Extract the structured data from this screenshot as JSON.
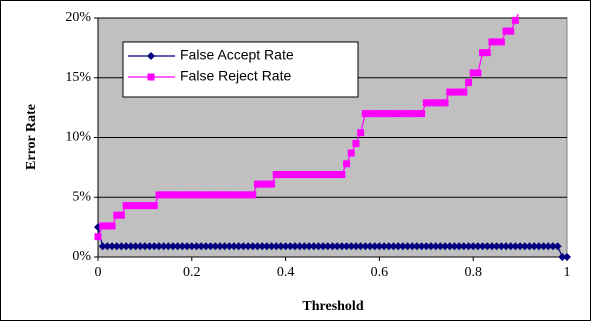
{
  "chart_data": {
    "type": "line",
    "xlabel": "Threshold",
    "ylabel": "Error Rate",
    "xlim": [
      0,
      1
    ],
    "ylim": [
      0,
      20
    ],
    "xticks": [
      0,
      0.2,
      0.4,
      0.6,
      0.8,
      1
    ],
    "yticks": [
      {
        "value": 0,
        "label": "0%"
      },
      {
        "value": 5,
        "label": "5%"
      },
      {
        "value": 10,
        "label": "10%"
      },
      {
        "value": 15,
        "label": "15%"
      },
      {
        "value": 20,
        "label": "20%"
      }
    ],
    "grid": true,
    "legend": "upper left",
    "series": [
      {
        "name": "False Accept Rate",
        "color": "#000080",
        "marker": "diamond",
        "x": [
          0,
          0.01,
          0.02,
          0.03,
          0.04,
          0.05,
          0.06,
          0.07,
          0.08,
          0.09,
          0.1,
          0.11,
          0.12,
          0.13,
          0.14,
          0.15,
          0.16,
          0.17,
          0.18,
          0.19,
          0.2,
          0.21,
          0.22,
          0.23,
          0.24,
          0.25,
          0.26,
          0.27,
          0.28,
          0.29,
          0.3,
          0.31,
          0.32,
          0.33,
          0.34,
          0.35,
          0.36,
          0.37,
          0.38,
          0.39,
          0.4,
          0.41,
          0.42,
          0.43,
          0.44,
          0.45,
          0.46,
          0.47,
          0.48,
          0.49,
          0.5,
          0.51,
          0.52,
          0.53,
          0.54,
          0.55,
          0.56,
          0.57,
          0.58,
          0.59,
          0.6,
          0.61,
          0.62,
          0.63,
          0.64,
          0.65,
          0.66,
          0.67,
          0.68,
          0.69,
          0.7,
          0.71,
          0.72,
          0.73,
          0.74,
          0.75,
          0.76,
          0.77,
          0.78,
          0.79,
          0.8,
          0.81,
          0.82,
          0.83,
          0.84,
          0.85,
          0.86,
          0.87,
          0.88,
          0.89,
          0.9,
          0.91,
          0.92,
          0.93,
          0.94,
          0.95,
          0.96,
          0.97,
          0.98,
          0.99,
          1
        ],
        "values": [
          2.5,
          0.9,
          0.9,
          0.9,
          0.9,
          0.9,
          0.9,
          0.9,
          0.9,
          0.9,
          0.9,
          0.9,
          0.9,
          0.9,
          0.9,
          0.9,
          0.9,
          0.9,
          0.9,
          0.9,
          0.9,
          0.9,
          0.9,
          0.9,
          0.9,
          0.9,
          0.9,
          0.9,
          0.9,
          0.9,
          0.9,
          0.9,
          0.9,
          0.9,
          0.9,
          0.9,
          0.9,
          0.9,
          0.9,
          0.9,
          0.9,
          0.9,
          0.9,
          0.9,
          0.9,
          0.9,
          0.9,
          0.9,
          0.9,
          0.9,
          0.9,
          0.9,
          0.9,
          0.9,
          0.9,
          0.9,
          0.9,
          0.9,
          0.9,
          0.9,
          0.9,
          0.9,
          0.9,
          0.9,
          0.9,
          0.9,
          0.9,
          0.9,
          0.9,
          0.9,
          0.9,
          0.9,
          0.9,
          0.9,
          0.9,
          0.9,
          0.9,
          0.9,
          0.9,
          0.9,
          0.9,
          0.9,
          0.9,
          0.9,
          0.9,
          0.9,
          0.9,
          0.9,
          0.9,
          0.9,
          0.9,
          0.9,
          0.9,
          0.9,
          0.9,
          0.9,
          0.9,
          0.9,
          0.9,
          0,
          0
        ]
      },
      {
        "name": "False Reject Rate",
        "color": "#ff00ff",
        "marker": "square",
        "x": [
          0,
          0.01,
          0.02,
          0.03,
          0.04,
          0.05,
          0.06,
          0.07,
          0.08,
          0.09,
          0.1,
          0.11,
          0.12,
          0.13,
          0.14,
          0.15,
          0.16,
          0.17,
          0.18,
          0.19,
          0.2,
          0.21,
          0.22,
          0.23,
          0.24,
          0.25,
          0.26,
          0.27,
          0.28,
          0.29,
          0.3,
          0.31,
          0.32,
          0.33,
          0.34,
          0.35,
          0.36,
          0.37,
          0.38,
          0.39,
          0.4,
          0.41,
          0.42,
          0.43,
          0.44,
          0.45,
          0.46,
          0.47,
          0.48,
          0.49,
          0.5,
          0.51,
          0.52,
          0.53,
          0.54,
          0.55,
          0.56,
          0.57,
          0.58,
          0.59,
          0.6,
          0.61,
          0.62,
          0.63,
          0.64,
          0.65,
          0.66,
          0.67,
          0.68,
          0.69,
          0.7,
          0.71,
          0.72,
          0.73,
          0.74,
          0.75,
          0.76,
          0.77,
          0.78,
          0.79,
          0.8,
          0.81,
          0.82,
          0.83,
          0.84,
          0.85,
          0.86,
          0.87,
          0.88,
          0.89,
          0.9
        ],
        "values": [
          1.7,
          2.6,
          2.6,
          2.6,
          3.5,
          3.5,
          4.3,
          4.3,
          4.3,
          4.3,
          4.3,
          4.3,
          4.3,
          5.2,
          5.2,
          5.2,
          5.2,
          5.2,
          5.2,
          5.2,
          5.2,
          5.2,
          5.2,
          5.2,
          5.2,
          5.2,
          5.2,
          5.2,
          5.2,
          5.2,
          5.2,
          5.2,
          5.2,
          5.2,
          6.1,
          6.1,
          6.1,
          6.1,
          6.9,
          6.9,
          6.9,
          6.9,
          6.9,
          6.9,
          6.9,
          6.9,
          6.9,
          6.9,
          6.9,
          6.9,
          6.9,
          6.9,
          6.9,
          7.8,
          8.7,
          9.5,
          10.4,
          12,
          12,
          12,
          12,
          12,
          12,
          12,
          12,
          12,
          12,
          12,
          12,
          12,
          12.9,
          12.9,
          12.9,
          12.9,
          12.9,
          13.8,
          13.8,
          13.8,
          13.8,
          14.6,
          15.4,
          15.4,
          17.1,
          17.1,
          18,
          18,
          18,
          18.9,
          18.9,
          19.8,
          20.7
        ]
      }
    ]
  }
}
